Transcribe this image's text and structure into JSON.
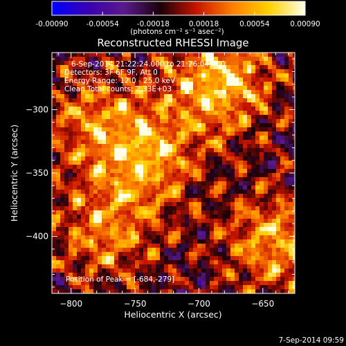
{
  "colorbar": {
    "ticks": [
      "-0.00090",
      "-0.00054",
      "-0.00018",
      "0.00018",
      "0.00054",
      "0.00090"
    ],
    "unit_label": "(photons cm⁻² s⁻¹ asec⁻²)",
    "range": [
      -0.0009,
      0.0009
    ],
    "colors": [
      "#0000ff",
      "#3a00b0",
      "#5a1a8c",
      "#1a0008",
      "#c81400",
      "#ff8000",
      "#ffd000",
      "#ffffe8"
    ]
  },
  "chart_data": {
    "type": "heatmap",
    "title": "Reconstructed RHESSI Image",
    "xlabel": "Heliocentric X (arcsec)",
    "ylabel": "Heliocentric Y (arcsec)",
    "xlim": [
      -815,
      -625
    ],
    "ylim": [
      -445,
      -255
    ],
    "xticks": [
      {
        "value": -800,
        "label": "−800"
      },
      {
        "value": -750,
        "label": "−750"
      },
      {
        "value": -700,
        "label": "−700"
      },
      {
        "value": -650,
        "label": "−650"
      }
    ],
    "yticks": [
      {
        "value": -300,
        "label": "−300"
      },
      {
        "value": -350,
        "label": "−350"
      },
      {
        "value": -400,
        "label": "−400"
      }
    ],
    "bright_regions": [
      {
        "x": -684,
        "y": -279,
        "strength": 1.0
      },
      {
        "x": -742,
        "y": -337,
        "strength": 0.85
      },
      {
        "x": -640,
        "y": -405,
        "strength": 0.8
      },
      {
        "x": -773,
        "y": -397,
        "strength": 0.65
      },
      {
        "x": -784,
        "y": -307,
        "strength": 0.55
      }
    ],
    "annotations": {
      "time_range": "6-Sep-2014 21:22:24.000 to 21:26:04.000",
      "detectors": "Detectors: 3F 6F 9F, Att 0",
      "energy": "Energy Range: 12.0 - 25.0 keV",
      "clean": "Clean     Total counts: 2.33E+03",
      "peak": "Position of Peak = [-684,-279]"
    },
    "peak": {
      "x": -684,
      "y": -279
    }
  },
  "timestamp": "7-Sep-2014 09:59"
}
